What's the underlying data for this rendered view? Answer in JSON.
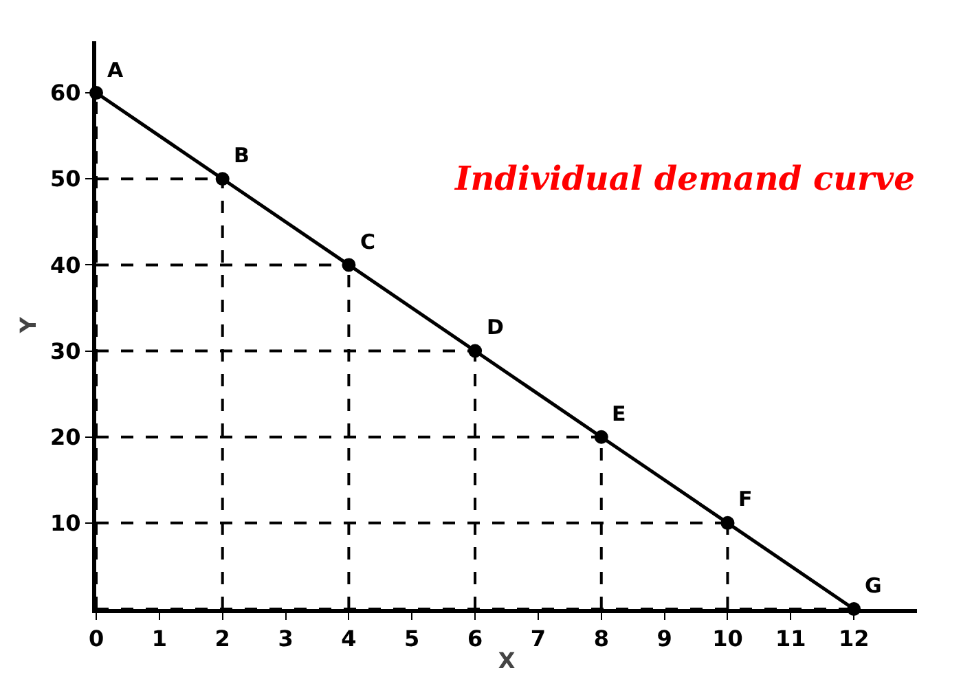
{
  "chart_data": {
    "type": "line",
    "xlabel": "X",
    "ylabel": "Y",
    "x": [
      0,
      2,
      4,
      6,
      8,
      10,
      12
    ],
    "series": [
      {
        "color": "#000000",
        "values": [
          60,
          50,
          40,
          30,
          20,
          10,
          0
        ]
      }
    ],
    "xlim": [
      0,
      13
    ],
    "xticks": [
      0,
      1,
      2,
      3,
      4,
      5,
      6,
      7,
      8,
      9,
      10,
      11,
      12
    ],
    "ylim": [
      0,
      66
    ],
    "yticks": [
      10,
      20,
      30,
      40,
      50,
      60
    ],
    "marker": "circle",
    "line_style": "solid",
    "grid": true,
    "annotations": [
      {
        "text": "A",
        "x": 0,
        "y": 60
      },
      {
        "text": "B",
        "x": 2,
        "y": 50
      },
      {
        "text": "C",
        "x": 4,
        "y": 40
      },
      {
        "text": "D",
        "x": 6,
        "y": 30
      },
      {
        "text": "E",
        "x": 8,
        "y": 20
      },
      {
        "text": "F",
        "x": 10,
        "y": 10
      },
      {
        "text": "G",
        "x": 12,
        "y": 0
      },
      "Individual demand curve"
    ]
  }
}
